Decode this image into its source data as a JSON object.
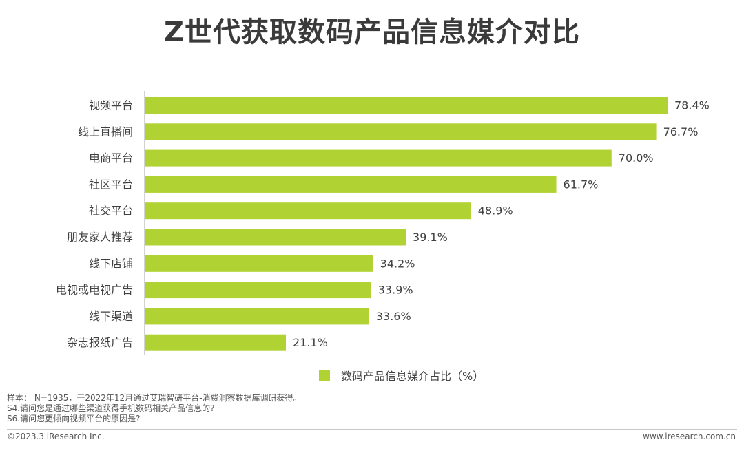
{
  "title": "Z世代获取数码产品信息媒介对比",
  "chart_data": {
    "type": "bar",
    "orientation": "horizontal",
    "categories": [
      "视频平台",
      "线上直播间",
      "电商平台",
      "社区平台",
      "社交平台",
      "朋友家人推荐",
      "线下店铺",
      "电视或电视广告",
      "线下渠道",
      "杂志报纸广告"
    ],
    "values": [
      78.4,
      76.7,
      70.0,
      61.7,
      48.9,
      39.1,
      34.2,
      33.9,
      33.6,
      21.1
    ],
    "value_labels": [
      "78.4%",
      "76.7%",
      "70.0%",
      "61.7%",
      "48.9%",
      "39.1%",
      "34.2%",
      "33.9%",
      "33.6%",
      "21.1%"
    ],
    "series": [
      {
        "name": "数码产品信息媒介占比（%）",
        "values": [
          78.4,
          76.7,
          70.0,
          61.7,
          48.9,
          39.1,
          34.2,
          33.9,
          33.6,
          21.1
        ]
      }
    ],
    "xlim": [
      0,
      80
    ],
    "grid": false,
    "legend_position": "bottom",
    "bar_color": "#b0d232"
  },
  "notes": [
    "样本： N=1935，于2022年12月通过艾瑞智研平台-消费洞察数据库调研获得。",
    "S4.请问您是通过哪些渠道获得手机数码相关产品信息的?",
    "S6.请问您更倾向视频平台的原因是?"
  ],
  "footer": {
    "copyright": "©2023.3 iResearch Inc.",
    "website": "www.iresearch.com.cn"
  }
}
